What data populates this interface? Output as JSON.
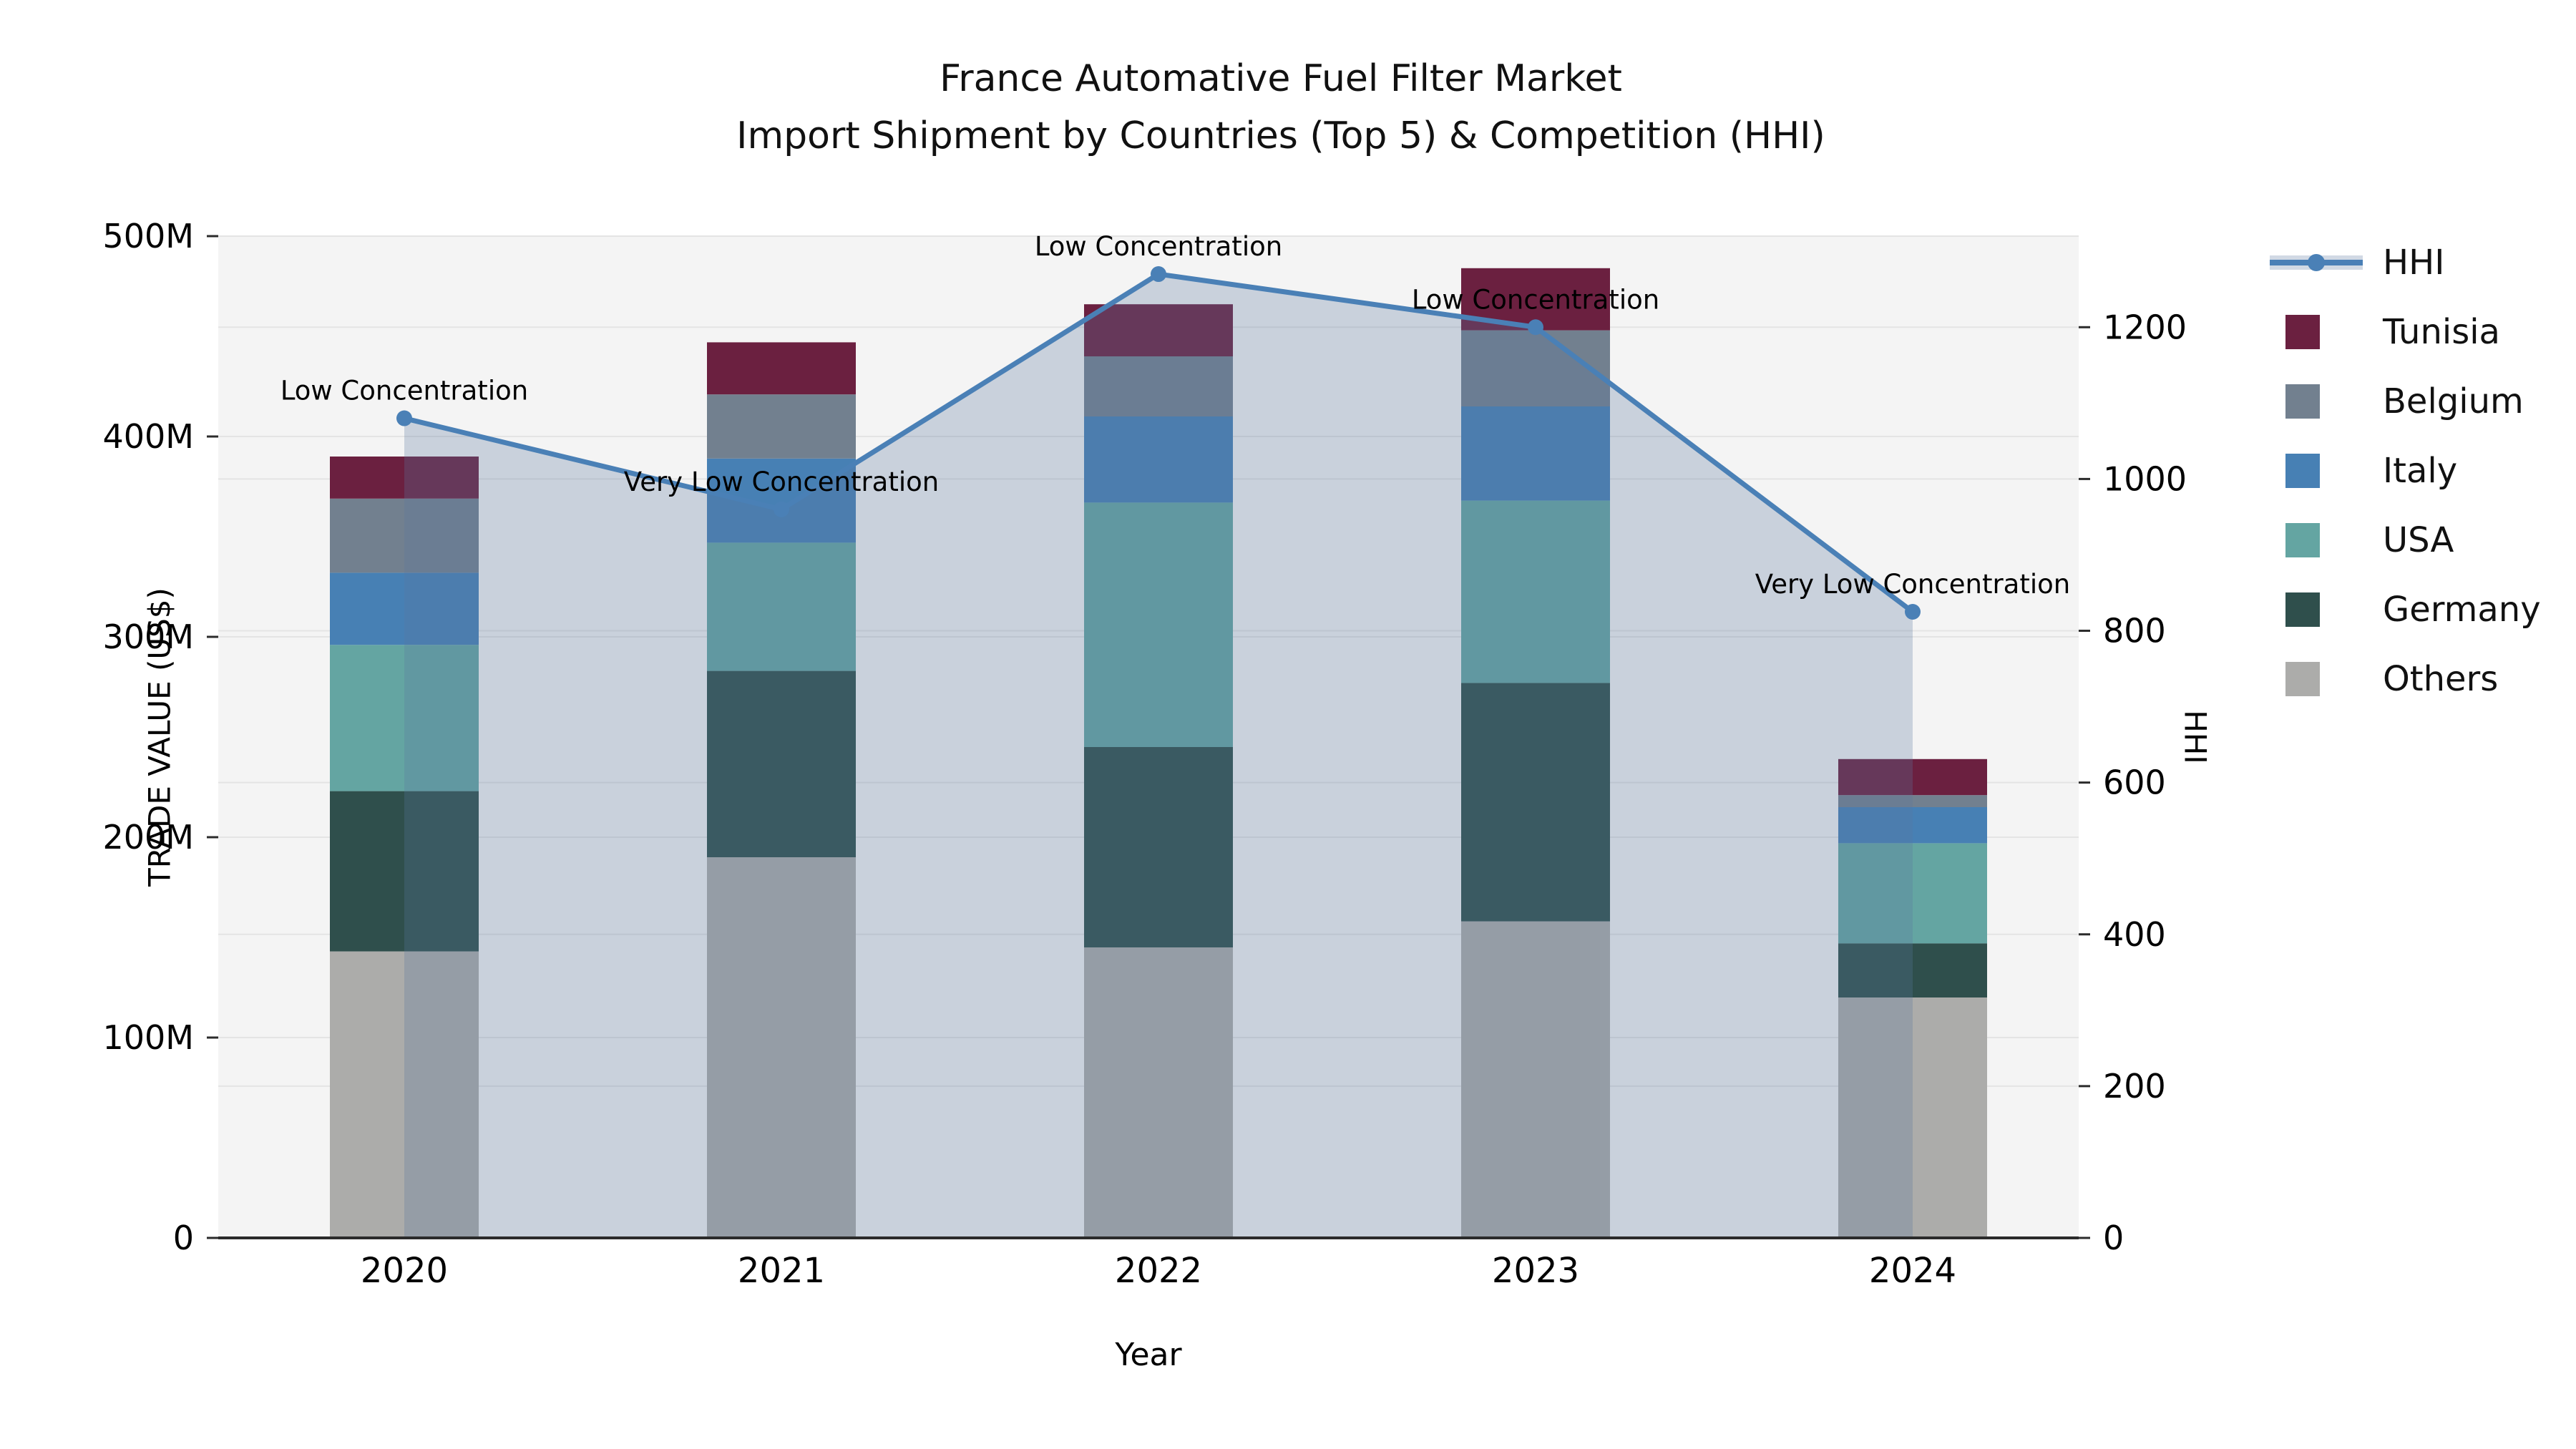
{
  "title": {
    "line1": "France Automative Fuel Filter Market",
    "line2": "Import Shipment by Countries (Top 5) & Competition (HHI)"
  },
  "colors": {
    "plot_bg": "#f4f4f4",
    "grid": "#e4e4e4",
    "axis_line": "#2b2b2b",
    "hhi_line": "#4a80b6",
    "hhi_fill": "rgba(90,120,158,0.28)",
    "hhi_legend_band": "#d1d9e4",
    "text": "#000000"
  },
  "chart_data": {
    "type": "bar+line",
    "categories": [
      "2020",
      "2021",
      "2022",
      "2023",
      "2024"
    ],
    "xlabel": "Year",
    "bar_series": [
      {
        "name": "Others",
        "color": "#acacaa",
        "values": [
          143,
          190,
          145,
          158,
          120
        ]
      },
      {
        "name": "Germany",
        "color": "#2f4f4c",
        "values": [
          80,
          93,
          100,
          119,
          27
        ]
      },
      {
        "name": "USA",
        "color": "#64a5a2",
        "values": [
          73,
          64,
          122,
          91,
          50
        ]
      },
      {
        "name": "Italy",
        "color": "#4780b4",
        "values": [
          36,
          42,
          43,
          47,
          18
        ]
      },
      {
        "name": "Belgium",
        "color": "#72808f",
        "values": [
          37,
          32,
          30,
          38,
          6
        ]
      },
      {
        "name": "Tunisia",
        "color": "#6b2040",
        "values": [
          21,
          26,
          26,
          31,
          18
        ]
      }
    ],
    "bar_totals": [
      390,
      447,
      466,
      484,
      239
    ],
    "line_series": {
      "name": "HHI",
      "values": [
        1080,
        960,
        1270,
        1200,
        825
      ],
      "annotations": [
        "Low Concentration",
        "Very Low Concentration",
        "Low Concentration",
        "Low Concentration",
        "Very Low Concentration"
      ]
    },
    "left_axis": {
      "title": "TRADE VALUE (US$)",
      "max": 500,
      "ticks": [
        {
          "v": 0,
          "label": "0"
        },
        {
          "v": 100,
          "label": "100M"
        },
        {
          "v": 200,
          "label": "200M"
        },
        {
          "v": 300,
          "label": "300M"
        },
        {
          "v": 400,
          "label": "400M"
        },
        {
          "v": 500,
          "label": "500M"
        }
      ]
    },
    "right_axis": {
      "title": "HHI",
      "max": 1320,
      "ticks": [
        {
          "v": 0,
          "label": "0"
        },
        {
          "v": 200,
          "label": "200"
        },
        {
          "v": 400,
          "label": "400"
        },
        {
          "v": 600,
          "label": "600"
        },
        {
          "v": 800,
          "label": "800"
        },
        {
          "v": 1000,
          "label": "1000"
        },
        {
          "v": 1200,
          "label": "1200"
        }
      ]
    },
    "legend_position": "right"
  },
  "legend": {
    "items": [
      {
        "id": "hhi",
        "label": "HHI",
        "type": "line"
      },
      {
        "id": "tunisia",
        "label": "Tunisia",
        "type": "swatch",
        "color": "#6b2040"
      },
      {
        "id": "belgium",
        "label": "Belgium",
        "type": "swatch",
        "color": "#72808f"
      },
      {
        "id": "italy",
        "label": "Italy",
        "type": "swatch",
        "color": "#4780b4"
      },
      {
        "id": "usa",
        "label": "USA",
        "type": "swatch",
        "color": "#64a5a2"
      },
      {
        "id": "germany",
        "label": "Germany",
        "type": "swatch",
        "color": "#2f4f4c"
      },
      {
        "id": "others",
        "label": "Others",
        "type": "swatch",
        "color": "#acacaa"
      }
    ]
  }
}
